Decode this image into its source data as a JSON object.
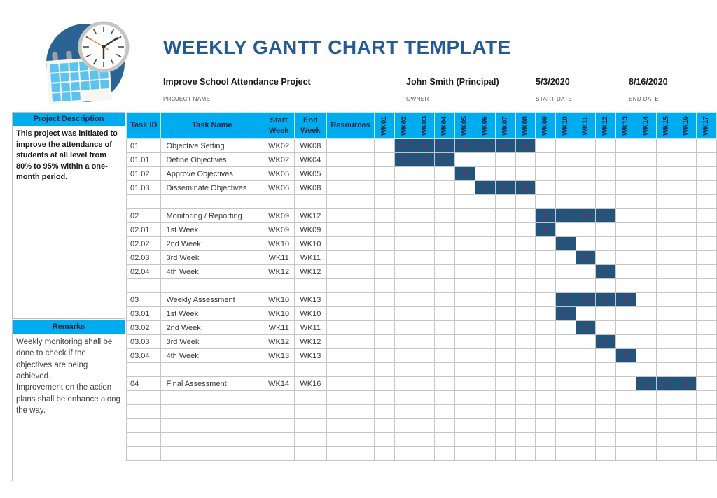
{
  "header": {
    "title": "WEEKLY GANTT CHART TEMPLATE",
    "logo": "calendar-clock-logo"
  },
  "project_info": {
    "fields": [
      {
        "value": "Improve School Attendance Project",
        "label": "PROJECT NAME"
      },
      {
        "value": "John Smith (Principal)",
        "label": "OWNER"
      },
      {
        "value": "5/3/2020",
        "label": "START DATE"
      },
      {
        "value": "8/16/2020",
        "label": "END DATE"
      }
    ]
  },
  "sidebar": {
    "project_description": {
      "title": "Project Description",
      "body": "This project was initiated to improve the attendance of students at all level from 80% to 95% within a one-month period."
    },
    "remarks": {
      "title": "Remarks",
      "body": "Weekly monitoring shall be done to check if the objectives are being achieved.\nImprovement on the action plans shall be enhance along the way."
    }
  },
  "chart_data": {
    "type": "table",
    "title": "WEEKLY GANTT CHART TEMPLATE",
    "fixed_columns": [
      "Task ID",
      "Task Name",
      "Start\nWeek",
      "End\nWeek",
      "Resources"
    ],
    "weeks": [
      "WK01",
      "WK02",
      "WK03",
      "WK04",
      "WK05",
      "WK06",
      "WK07",
      "WK08",
      "WK09",
      "WK10",
      "WK11",
      "WK12",
      "WK13",
      "WK14",
      "WK15",
      "WK16",
      "WK17"
    ],
    "bar_value": "1",
    "trailing_empty_rows": 5,
    "tasks": [
      {
        "id": "01",
        "name": "Objective Setting",
        "start": "WK02",
        "end": "WK08",
        "resources": ""
      },
      {
        "id": "01.01",
        "name": "Define Objectives",
        "start": "WK02",
        "end": "WK04",
        "resources": ""
      },
      {
        "id": "01.02",
        "name": "Approve Objectives",
        "start": "WK05",
        "end": "WK05",
        "resources": ""
      },
      {
        "id": "01.03",
        "name": "Disseminate Objectives",
        "start": "WK06",
        "end": "WK08",
        "resources": ""
      },
      {
        "spacer": true
      },
      {
        "id": "02",
        "name": "Monitoring / Reporting",
        "start": "WK09",
        "end": "WK12",
        "resources": ""
      },
      {
        "id": "02.01",
        "name": "1st Week",
        "start": "WK09",
        "end": "WK09",
        "resources": ""
      },
      {
        "id": "02.02",
        "name": "2nd Week",
        "start": "WK10",
        "end": "WK10",
        "resources": ""
      },
      {
        "id": "02.03",
        "name": "3rd Week",
        "start": "WK11",
        "end": "WK11",
        "resources": ""
      },
      {
        "id": "02.04",
        "name": "4th Week",
        "start": "WK12",
        "end": "WK12",
        "resources": ""
      },
      {
        "spacer": true
      },
      {
        "id": "03",
        "name": "Weekly Assessment",
        "start": "WK10",
        "end": "WK13",
        "resources": ""
      },
      {
        "id": "03.01",
        "name": "1st Week",
        "start": "WK10",
        "end": "WK10",
        "resources": ""
      },
      {
        "id": "03.02",
        "name": "2nd Week",
        "start": "WK11",
        "end": "WK11",
        "resources": ""
      },
      {
        "id": "03.03",
        "name": "3rd Week",
        "start": "WK12",
        "end": "WK12",
        "resources": ""
      },
      {
        "id": "03.04",
        "name": "4th Week",
        "start": "WK13",
        "end": "WK13",
        "resources": ""
      },
      {
        "spacer": true
      },
      {
        "id": "04",
        "name": "Final Assessment",
        "start": "WK14",
        "end": "WK16",
        "resources": ""
      }
    ],
    "colors": {
      "accent_cyan": "#00ACEE",
      "bar_fill": "#24537C",
      "bar_value_text": "#8F2741",
      "title_blue": "#255B94",
      "header_text": "#0F2B46",
      "grid_line": "#C6C6C6"
    }
  }
}
